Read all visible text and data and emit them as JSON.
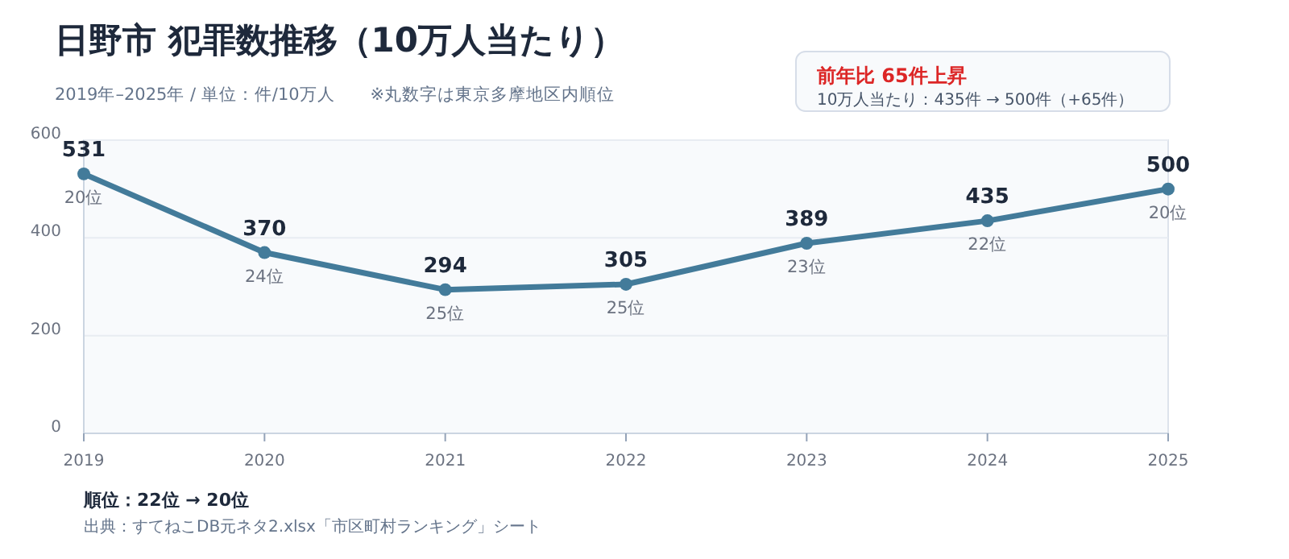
{
  "chart_data": {
    "type": "line",
    "title": "日野市  犯罪数推移（10万人当たり）",
    "subtitle": "2019年–2025年 / 単位：件/10万人　　※丸数字は東京多摩地区内順位",
    "categories": [
      "2019",
      "2020",
      "2021",
      "2022",
      "2023",
      "2024",
      "2025"
    ],
    "series": [
      {
        "color": "#437b9a",
        "values": [
          531,
          370,
          294,
          305,
          389,
          435,
          500
        ]
      }
    ],
    "ylim": [
      0,
      600
    ],
    "yticks": [
      0,
      200,
      400,
      600
    ],
    "grid": "y",
    "marker": "circle",
    "line_style": "solid",
    "data_labels": true,
    "annotations": [
      "前年比  65件上昇",
      "10万人当たり：435件 → 500件（+65件）",
      "順位：22位 → 20位",
      "出典：すてねこDB元ネタ2.xlsx「市区町村ランキング」シート",
      {
        "text": "20位",
        "x": "2019",
        "y": 531
      },
      {
        "text": "24位",
        "x": "2020",
        "y": 370
      },
      {
        "text": "25位",
        "x": "2021",
        "y": 294
      },
      {
        "text": "25位",
        "x": "2022",
        "y": 305
      },
      {
        "text": "23位",
        "x": "2023",
        "y": 389
      },
      {
        "text": "22位",
        "x": "2024",
        "y": 435
      },
      {
        "text": "20位",
        "x": "2025",
        "y": 500
      }
    ]
  }
}
